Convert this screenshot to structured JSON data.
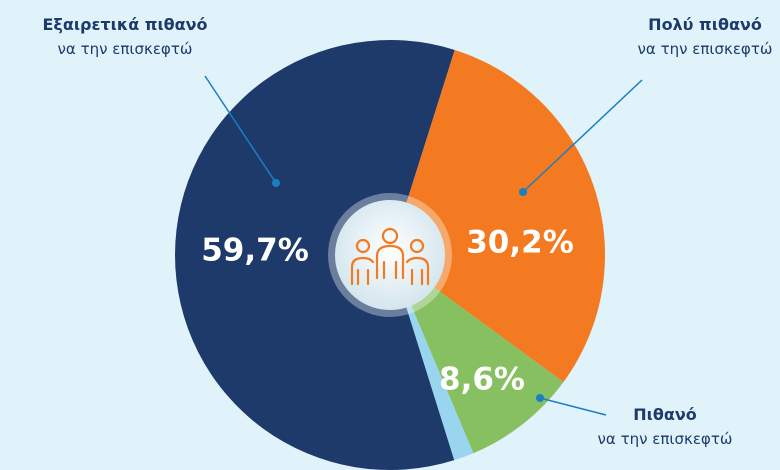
{
  "chart_data": {
    "type": "pie",
    "categories": [
      "Εξαιρετικά πιθανό",
      "Πολύ πιθανό",
      "Πιθανό",
      null
    ],
    "category_subtitles": [
      "να την επισκεφτώ",
      "να την επισκεφτώ",
      "να την επισκεφτώ",
      null
    ],
    "values": [
      59.7,
      30.2,
      8.6,
      1.5
    ],
    "value_labels": [
      "59,7%",
      "30,2%",
      "8,6%",
      null
    ],
    "colors": [
      "#1d3a6b",
      "#f37a20",
      "#86c060",
      "#9ad5ef"
    ]
  }
}
